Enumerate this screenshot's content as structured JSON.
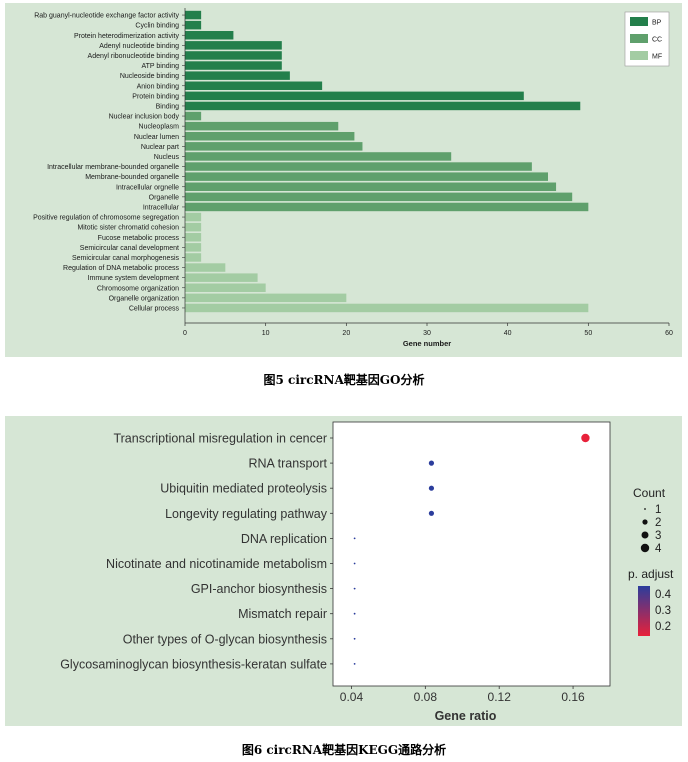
{
  "figure5": {
    "caption": "图5 circRNA靶基因GO分析"
  },
  "figure6": {
    "caption": "图6 circRNA靶基因KEGG通路分析"
  },
  "chart_data": [
    {
      "type": "bar",
      "orientation": "horizontal",
      "xlabel": "Gene number",
      "xlim": [
        0,
        60
      ],
      "xticks": [
        0,
        10,
        20,
        30,
        40,
        50,
        60
      ],
      "legend_position": "top-right",
      "legend": [
        {
          "name": "BP",
          "color": "#237f4b"
        },
        {
          "name": "CC",
          "color": "#5fa06c"
        },
        {
          "name": "MF",
          "color": "#a3cca3"
        }
      ],
      "categories": [
        "Rab guanyl-nucleotide exchange factor activity",
        "Cyclin binding",
        "Protein heterodimerization activity",
        "Adenyl nucleotide binding",
        "Adenyl ribonucleotide binding",
        "ATP binding",
        "Nucleoside binding",
        "Anion binding",
        "Protein binding",
        "Binding",
        "Nuclear inclusion body",
        "Nucleoplasm",
        "Nuclear lumen",
        "Nuclear part",
        "Nucleus",
        "Intracellular membrane-bounded organelle",
        "Membrane-bounded organelle",
        "Intracellular orgnelle",
        "Organelle",
        "Intracellular",
        "Positive regulation of chromosome segregation",
        "Mitotic sister chromatid cohesion",
        "Fucose metabolic process",
        "Semicircular canal development",
        "Semicircular canal morphogenesis",
        "Regulation of DNA metabolic process",
        "Immune system development",
        "Chromosome organization",
        "Organelle organization",
        "Cellular process"
      ],
      "values": [
        2,
        2,
        6,
        12,
        12,
        12,
        13,
        17,
        42,
        49,
        2,
        19,
        21,
        22,
        33,
        43,
        45,
        46,
        48,
        50,
        2,
        2,
        2,
        2,
        2,
        5,
        9,
        10,
        20,
        50
      ],
      "groups": [
        "BP",
        "BP",
        "BP",
        "BP",
        "BP",
        "BP",
        "BP",
        "BP",
        "BP",
        "BP",
        "CC",
        "CC",
        "CC",
        "CC",
        "CC",
        "CC",
        "CC",
        "CC",
        "CC",
        "CC",
        "MF",
        "MF",
        "MF",
        "MF",
        "MF",
        "MF",
        "MF",
        "MF",
        "MF",
        "MF"
      ]
    },
    {
      "type": "scatter",
      "xlabel": "Gene ratio",
      "xlim": [
        0.03,
        0.18
      ],
      "xticks": [
        0.04,
        0.08,
        0.12,
        0.16
      ],
      "categories": [
        "Transcriptional misregulation in cencer",
        "RNA transport",
        "Ubiquitin mediated proteolysis",
        "Longevity regulating pathway",
        "DNA replication",
        "Nicotinate and nicotinamide metabolism",
        "GPI-anchor biosynthesis",
        "Mismatch repair",
        "Other types of O-glycan biosynthesis",
        "Glycosaminoglycan biosynthesis-keratan sulfate"
      ],
      "x": [
        0.1667,
        0.0833,
        0.0833,
        0.0833,
        0.0417,
        0.0417,
        0.0417,
        0.0417,
        0.0417,
        0.0417
      ],
      "count": [
        4,
        2,
        2,
        2,
        1,
        1,
        1,
        1,
        1,
        1
      ],
      "p_adjust": [
        0.15,
        0.42,
        0.42,
        0.42,
        0.42,
        0.42,
        0.42,
        0.42,
        0.42,
        0.42
      ],
      "size_legend": {
        "title": "Count",
        "levels": [
          "1",
          "2",
          "3",
          "4"
        ]
      },
      "color_legend": {
        "title": "p. adjust",
        "ticks": [
          "0.4",
          "0.3",
          "0.2"
        ],
        "low_color": "#e8213a",
        "high_color": "#2b3d9c"
      }
    }
  ]
}
